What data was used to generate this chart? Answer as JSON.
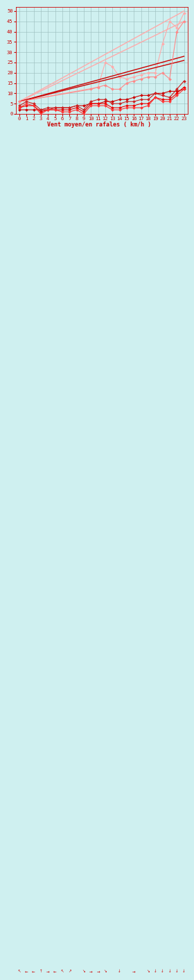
{
  "xlabel": "Vent moyen/en rafales ( km/h )",
  "background_color": "#cff0f0",
  "grid_color": "#99bbbb",
  "xlim": [
    -0.5,
    23.5
  ],
  "ylim": [
    0,
    52
  ],
  "yticks": [
    0,
    5,
    10,
    15,
    20,
    25,
    30,
    35,
    40,
    45,
    50
  ],
  "xticks": [
    0,
    1,
    2,
    3,
    4,
    5,
    6,
    7,
    8,
    9,
    10,
    11,
    12,
    13,
    14,
    15,
    16,
    17,
    18,
    19,
    20,
    21,
    22,
    23
  ],
  "series": [
    {
      "x": [
        0,
        1,
        2,
        3,
        4,
        5,
        6,
        7,
        8,
        9,
        10,
        11,
        12,
        13,
        14,
        15,
        16,
        17,
        18,
        19,
        20,
        21,
        22,
        23
      ],
      "y": [
        2,
        2,
        2,
        2,
        2,
        3,
        3,
        3,
        4,
        4,
        5,
        5,
        6,
        6,
        7,
        7,
        8,
        9,
        9,
        10,
        10,
        11,
        11,
        12
      ],
      "color": "#cc0000",
      "marker": "D",
      "markersize": 2,
      "linewidth": 0.8,
      "zorder": 4
    },
    {
      "x": [
        0,
        1,
        2,
        3,
        4,
        5,
        6,
        7,
        8,
        9,
        10,
        11,
        12,
        13,
        14,
        15,
        16,
        17,
        18,
        19,
        20,
        21,
        22,
        23
      ],
      "y": [
        3,
        4,
        4,
        1,
        2,
        2,
        2,
        2,
        3,
        1,
        5,
        5,
        5,
        3,
        3,
        4,
        4,
        5,
        5,
        8,
        7,
        7,
        10,
        13
      ],
      "color": "#ee0000",
      "marker": "D",
      "markersize": 2,
      "linewidth": 0.8,
      "zorder": 4
    },
    {
      "x": [
        0,
        1,
        2,
        3,
        4,
        5,
        6,
        7,
        8,
        9,
        10,
        11,
        12,
        13,
        14,
        15,
        16,
        17,
        18,
        19,
        20,
        21,
        22,
        23
      ],
      "y": [
        3,
        5,
        4,
        0,
        2,
        2,
        1,
        1,
        2,
        0,
        4,
        4,
        4,
        2,
        2,
        3,
        3,
        3,
        4,
        8,
        6,
        6,
        9,
        12
      ],
      "color": "#ff3333",
      "marker": "D",
      "markersize": 2,
      "linewidth": 0.8,
      "zorder": 4
    },
    {
      "x": [
        0,
        1,
        2,
        3,
        4,
        5,
        6,
        7,
        8,
        9,
        10,
        11,
        12,
        13,
        14,
        15,
        16,
        17,
        18,
        19,
        20,
        21,
        22,
        23
      ],
      "y": [
        4,
        6,
        5,
        2,
        3,
        3,
        3,
        3,
        4,
        2,
        6,
        7,
        7,
        5,
        5,
        6,
        6,
        7,
        7,
        10,
        9,
        8,
        12,
        16
      ],
      "color": "#cc2222",
      "marker": "D",
      "markersize": 2,
      "linewidth": 0.8,
      "zorder": 4
    },
    {
      "x": [
        0,
        23
      ],
      "y": [
        6,
        26
      ],
      "color": "#cc0000",
      "marker": null,
      "linewidth": 1.0,
      "linestyle": "-",
      "zorder": 3
    },
    {
      "x": [
        0,
        23
      ],
      "y": [
        6,
        28
      ],
      "color": "#cc0000",
      "marker": null,
      "linewidth": 1.0,
      "linestyle": "-",
      "zorder": 3
    },
    {
      "x": [
        0,
        10,
        11,
        12,
        13,
        14,
        15,
        16,
        17,
        18,
        19,
        20,
        21,
        22,
        23
      ],
      "y": [
        6,
        12,
        13,
        14,
        12,
        12,
        15,
        16,
        17,
        18,
        18,
        20,
        17,
        40,
        45
      ],
      "color": "#ff8888",
      "marker": "D",
      "markersize": 2,
      "linewidth": 0.8,
      "linestyle": "-",
      "zorder": 3
    },
    {
      "x": [
        0,
        23
      ],
      "y": [
        6,
        45
      ],
      "color": "#ffaaaa",
      "marker": null,
      "linewidth": 1.0,
      "linestyle": "-",
      "zorder": 2
    },
    {
      "x": [
        0,
        11,
        12,
        13,
        14,
        15,
        16,
        17,
        18,
        19,
        20,
        21,
        22,
        23
      ],
      "y": [
        6,
        13,
        25,
        23,
        18,
        17,
        18,
        19,
        20,
        20,
        34,
        45,
        42,
        49
      ],
      "color": "#ffaaaa",
      "marker": "D",
      "markersize": 2,
      "linewidth": 0.8,
      "linestyle": "-",
      "zorder": 2
    },
    {
      "x": [
        0,
        23
      ],
      "y": [
        6,
        50
      ],
      "color": "#ffaaaa",
      "marker": null,
      "linewidth": 1.0,
      "linestyle": "-",
      "zorder": 2
    }
  ],
  "wind_arrows": [
    {
      "x": 0,
      "char": "↖"
    },
    {
      "x": 1,
      "char": "←"
    },
    {
      "x": 2,
      "char": "←"
    },
    {
      "x": 3,
      "char": "↑"
    },
    {
      "x": 4,
      "char": "→"
    },
    {
      "x": 5,
      "char": "←"
    },
    {
      "x": 6,
      "char": "↖"
    },
    {
      "x": 7,
      "char": "↗"
    },
    {
      "x": 9,
      "char": "↘"
    },
    {
      "x": 10,
      "char": "→"
    },
    {
      "x": 11,
      "char": "→"
    },
    {
      "x": 12,
      "char": "↘"
    },
    {
      "x": 14,
      "char": "↓"
    },
    {
      "x": 16,
      "char": "→"
    },
    {
      "x": 18,
      "char": "↘"
    },
    {
      "x": 19,
      "char": "↓"
    },
    {
      "x": 20,
      "char": "↓"
    },
    {
      "x": 21,
      "char": "↓"
    },
    {
      "x": 22,
      "char": "↓"
    },
    {
      "x": 23,
      "char": "↓"
    }
  ]
}
